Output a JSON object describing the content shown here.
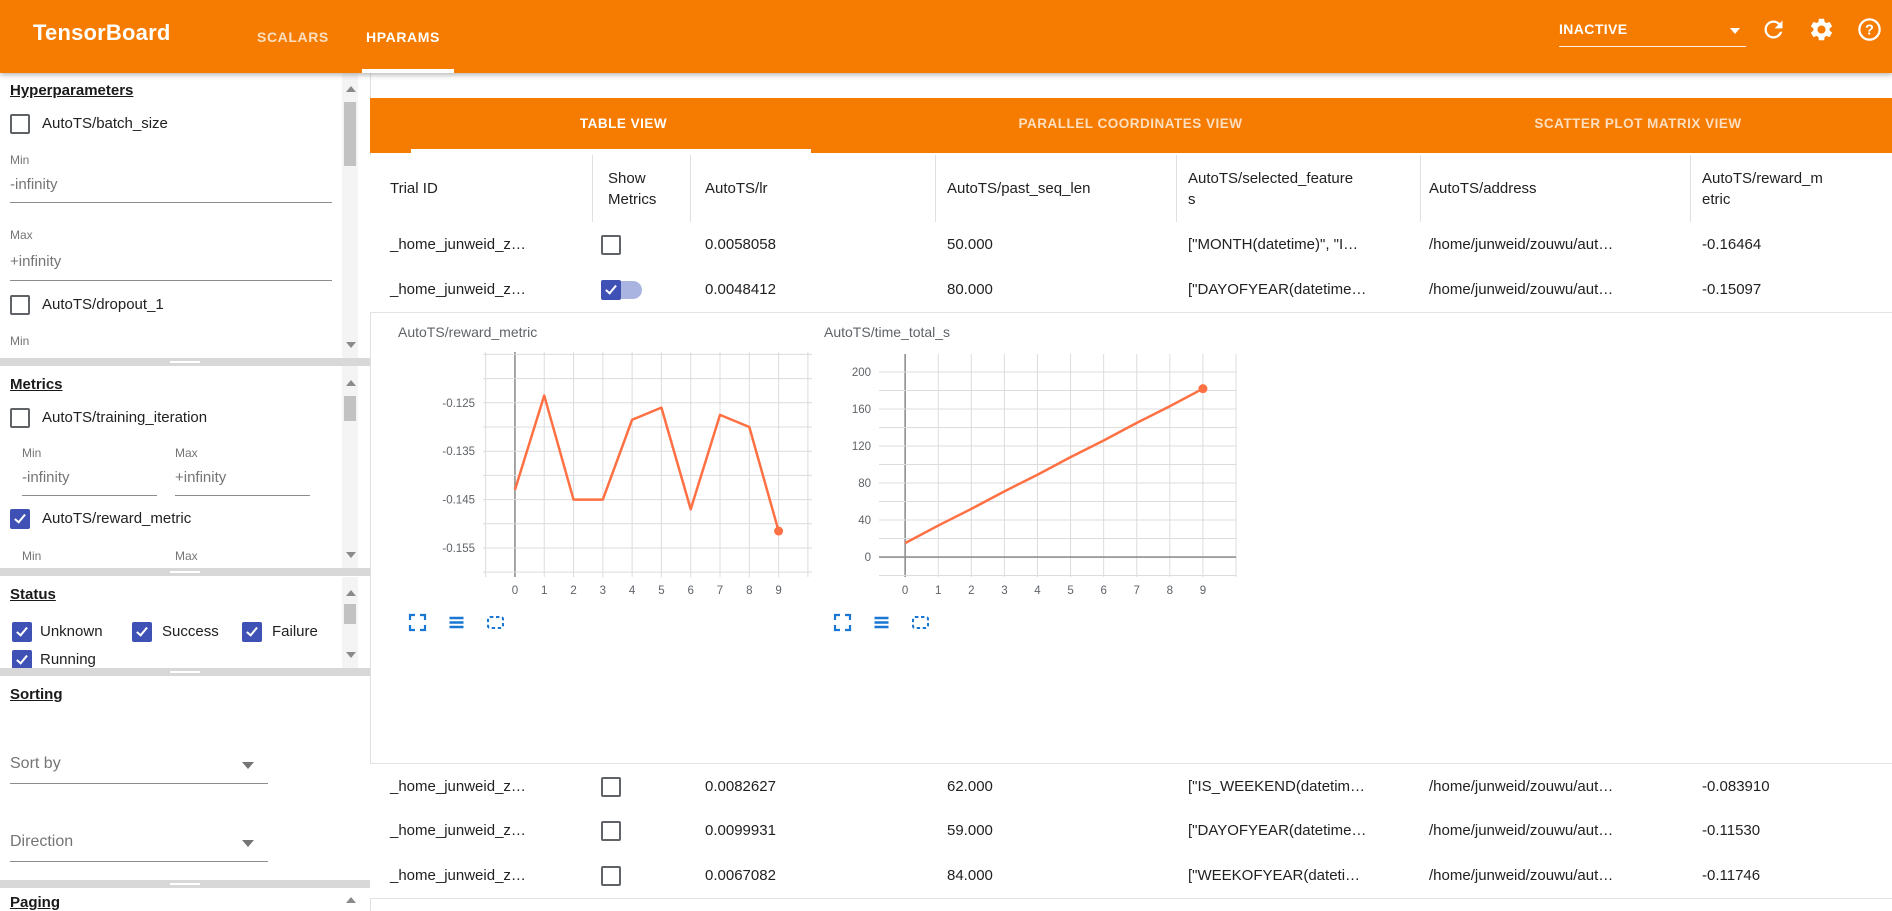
{
  "header": {
    "title": "TensorBoard",
    "nav_tabs": [
      {
        "label": "SCALARS",
        "active": false
      },
      {
        "label": "HPARAMS",
        "active": true
      }
    ],
    "status_value": "INACTIVE"
  },
  "sidebar": {
    "hyperparameters": {
      "title": "Hyperparameters",
      "items": [
        {
          "label": "AutoTS/batch_size",
          "checked": false,
          "min_label": "Min",
          "min_text": "-infinity",
          "max_label": "Max",
          "max_text": "+infinity"
        },
        {
          "label": "AutoTS/dropout_1",
          "checked": false,
          "min_label": "Min"
        }
      ]
    },
    "metrics": {
      "title": "Metrics",
      "items": [
        {
          "label": "AutoTS/training_iteration",
          "checked": false,
          "min_label": "Min",
          "min_text": "-infinity",
          "max_label": "Max",
          "max_text": "+infinity"
        },
        {
          "label": "AutoTS/reward_metric",
          "checked": true,
          "min_label": "Min",
          "max_label": "Max"
        }
      ]
    },
    "status": {
      "title": "Status",
      "options": [
        {
          "label": "Unknown",
          "checked": true
        },
        {
          "label": "Success",
          "checked": true
        },
        {
          "label": "Failure",
          "checked": true
        },
        {
          "label": "Running",
          "checked": true
        }
      ]
    },
    "sorting": {
      "title": "Sorting",
      "sort_by_placeholder": "Sort by",
      "direction_placeholder": "Direction"
    },
    "paging": {
      "title": "Paging"
    }
  },
  "main": {
    "view_tabs": [
      {
        "label": "TABLE VIEW",
        "active": true
      },
      {
        "label": "PARALLEL COORDINATES VIEW",
        "active": false
      },
      {
        "label": "SCATTER PLOT MATRIX VIEW",
        "active": false
      }
    ],
    "table": {
      "columns": [
        "Trial ID",
        "Show Metrics",
        "AutoTS/lr",
        "AutoTS/past_seq_len",
        "AutoTS/selected_features",
        "AutoTS/address",
        "AutoTS/reward_metric"
      ],
      "rows": [
        {
          "trial_id": "_home_junweid_z…",
          "show_metrics": false,
          "lr": "0.0058058",
          "past_seq_len": "50.000",
          "selected_features": "[\"MONTH(datetime)\", \"I…",
          "address": "/home/junweid/zouwu/aut…",
          "reward_metric": "-0.16464"
        },
        {
          "trial_id": "_home_junweid_z…",
          "show_metrics": true,
          "lr": "0.0048412",
          "past_seq_len": "80.000",
          "selected_features": "[\"DAYOFYEAR(datetime…",
          "address": "/home/junweid/zouwu/aut…",
          "reward_metric": "-0.15097"
        },
        {
          "trial_id": "_home_junweid_z…",
          "show_metrics": false,
          "lr": "0.0082627",
          "past_seq_len": "62.000",
          "selected_features": "[\"IS_WEEKEND(datetim…",
          "address": "/home/junweid/zouwu/aut…",
          "reward_metric": "-0.083910"
        },
        {
          "trial_id": "_home_junweid_z…",
          "show_metrics": false,
          "lr": "0.0099931",
          "past_seq_len": "59.000",
          "selected_features": "[\"DAYOFYEAR(datetime…",
          "address": "/home/junweid/zouwu/aut…",
          "reward_metric": "-0.11530"
        },
        {
          "trial_id": "_home_junweid_z…",
          "show_metrics": false,
          "lr": "0.0067082",
          "past_seq_len": "84.000",
          "selected_features": "[\"WEEKOFYEAR(dateti…",
          "address": "/home/junweid/zouwu/aut…",
          "reward_metric": "-0.11746"
        }
      ]
    }
  },
  "chart_data": [
    {
      "type": "line",
      "title": "AutoTS/reward_metric",
      "x": [
        0,
        1,
        2,
        3,
        4,
        5,
        6,
        7,
        8,
        9
      ],
      "values": [
        -0.143,
        -0.1235,
        -0.145,
        -0.145,
        -0.1285,
        -0.126,
        -0.147,
        -0.1275,
        -0.13,
        -0.1515
      ],
      "xticks": [
        0,
        1,
        2,
        3,
        4,
        5,
        6,
        7,
        8,
        9
      ],
      "yticks": [
        -0.125,
        -0.135,
        -0.145,
        -0.155
      ],
      "ytick_labels": [
        "-0.125",
        "-0.135",
        "-0.145",
        "-0.155"
      ],
      "ylim": [
        -0.161,
        -0.1145
      ],
      "xlim": [
        -1.09,
        10.14
      ],
      "ygrid_step": 0.005,
      "xgrid_step": 1,
      "grid": true,
      "legend": "none",
      "line_color": "#ff7043",
      "end_dot": true
    },
    {
      "type": "line",
      "title": "AutoTS/time_total_s",
      "x": [
        0,
        1,
        2,
        3,
        4,
        5,
        6,
        7,
        8,
        9
      ],
      "values": [
        15,
        34,
        52,
        71,
        89,
        108,
        126,
        145,
        163,
        182
      ],
      "xticks": [
        0,
        1,
        2,
        3,
        4,
        5,
        6,
        7,
        8,
        9
      ],
      "yticks": [
        0,
        40,
        80,
        120,
        160,
        200
      ],
      "ytick_labels": [
        "0",
        "40",
        "80",
        "120",
        "160",
        "200"
      ],
      "ylim": [
        -21.6,
        219.5
      ],
      "xlim": [
        -0.79,
        10.0
      ],
      "ygrid_step": 20,
      "xgrid_step": 1,
      "grid": true,
      "legend": "none",
      "line_color": "#ff7043",
      "end_dot": true
    }
  ],
  "colors": {
    "header_orange": "#f57c00",
    "checkbox_indigo": "#3f51b5",
    "chart_line_orange": "#ff7043",
    "chart_tool_blue": "#1976d2"
  }
}
